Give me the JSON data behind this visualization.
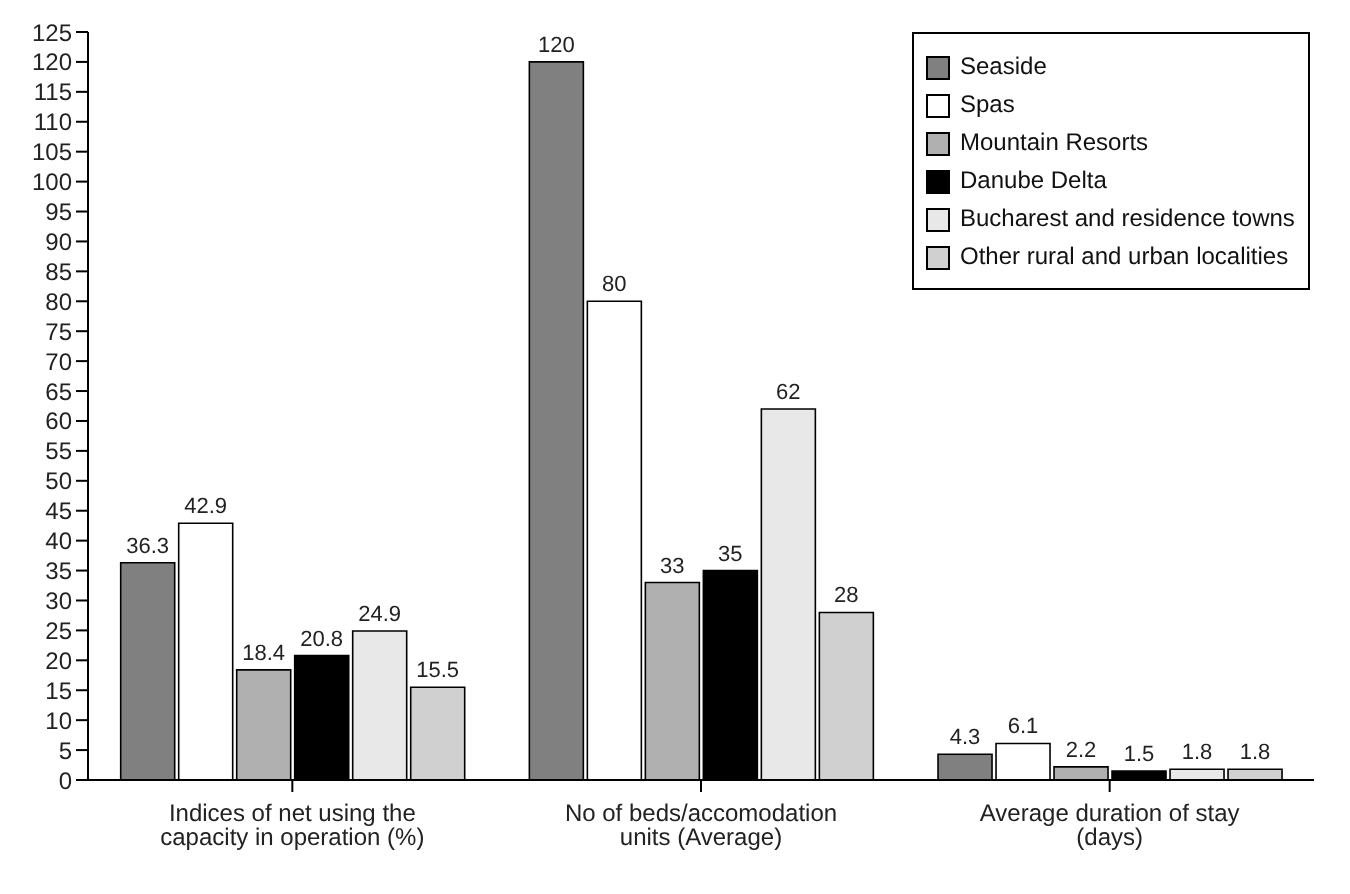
{
  "chart_data": {
    "type": "bar",
    "categories": [
      "Indices of net using the capacity in operation (%)",
      "No of beds/accomodation units (Average)",
      "Average duration of stay (days)"
    ],
    "series": [
      {
        "name": "Seaside",
        "color": "#808080",
        "values": [
          36.3,
          120,
          4.3
        ]
      },
      {
        "name": "Spas",
        "color": "#ffffff",
        "values": [
          42.9,
          80,
          6.1
        ]
      },
      {
        "name": "Mountain Resorts",
        "color": "#b0b0b0",
        "values": [
          18.4,
          33,
          2.2
        ]
      },
      {
        "name": "Danube Delta",
        "color": "#000000",
        "values": [
          20.8,
          35,
          1.5
        ]
      },
      {
        "name": "Bucharest and residence towns",
        "color": "#e8e8e8",
        "values": [
          24.9,
          62,
          1.8
        ]
      },
      {
        "name": "Other rural and urban localities",
        "color": "#d0d0d0",
        "values": [
          15.5,
          28,
          1.8
        ]
      }
    ],
    "ylim": [
      0,
      125
    ],
    "yticks": [
      0,
      5,
      10,
      15,
      20,
      25,
      30,
      35,
      40,
      45,
      50,
      55,
      60,
      65,
      70,
      75,
      80,
      85,
      90,
      95,
      100,
      105,
      110,
      115,
      120,
      125
    ],
    "data_labels": true,
    "legend": "top right",
    "grid": false
  }
}
